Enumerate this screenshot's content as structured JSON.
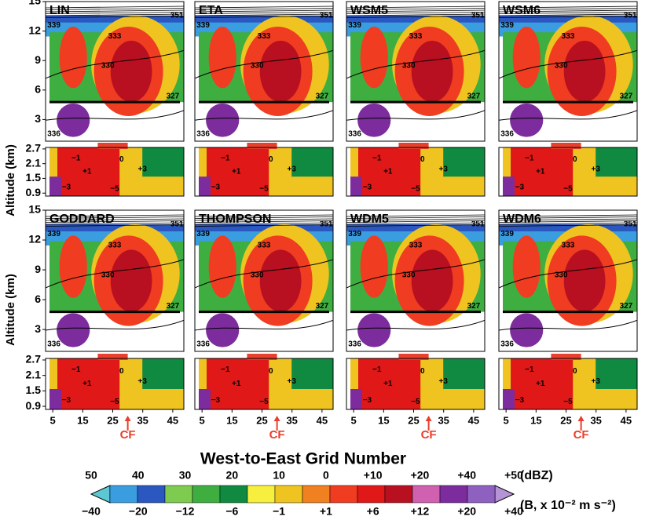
{
  "figure": {
    "y_label": "Altitude (km)",
    "x_label": "West-to-East Grid Number",
    "panels": [
      {
        "title": "LIN"
      },
      {
        "title": "ETA"
      },
      {
        "title": "WSM5"
      },
      {
        "title": "WSM6"
      },
      {
        "title": "GODDARD"
      },
      {
        "title": "THOMPSON"
      },
      {
        "title": "WDM5"
      },
      {
        "title": "WDM6"
      }
    ],
    "upper_ylim": [
      0.8,
      15
    ],
    "upper_yticks": [
      3,
      6,
      9,
      12,
      15
    ],
    "lower_ylim": [
      0.78,
      2.76
    ],
    "lower_yticks": [
      0.9,
      1.5,
      2.1,
      2.7
    ],
    "xlim": [
      2.6,
      48.7
    ],
    "xticks": [
      5,
      15,
      25,
      35,
      45
    ],
    "front_label": "CF",
    "contour_labels_upper": [
      "351",
      "339",
      "333",
      "330",
      "327",
      "336"
    ],
    "contour_labels_lower": [
      "−1",
      "0",
      "+1",
      "+3",
      "−3",
      "−5"
    ],
    "colorbar": {
      "dbz_unit": "(dBZ)",
      "b_unit": "(B, x 10⁻² m s⁻²)",
      "dbz_labels": [
        "50",
        "40",
        "30",
        "20",
        "10",
        "0",
        "+10",
        "+20",
        "+40",
        "+50"
      ],
      "b_labels": [
        "−40",
        "−20",
        "−12",
        "−6",
        "−1",
        "+1",
        "+6",
        "+12",
        "+20",
        "+40"
      ],
      "colors": [
        "#5cc8d4",
        "#3a9de0",
        "#2a58c0",
        "#7fcb50",
        "#3fae40",
        "#0f8a40",
        "#f7ef3e",
        "#efc420",
        "#f08020",
        "#f03c20",
        "#e01818",
        "#b81020",
        "#d060b0",
        "#7c2c9c",
        "#8e60c0",
        "#b494d4"
      ]
    }
  }
}
